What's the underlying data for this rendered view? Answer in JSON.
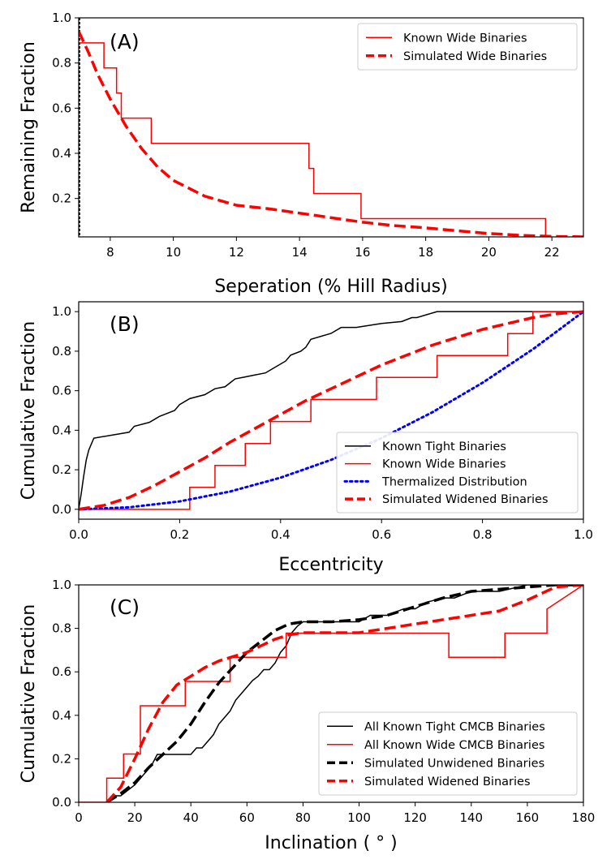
{
  "chart_data": [
    {
      "type": "line",
      "panel_label": "(A)",
      "xlabel": "Seperation (% Hill Radius)",
      "ylabel": "Remaining Fraction",
      "xlim": [
        7,
        23
      ],
      "ylim": [
        0.03,
        1.0
      ],
      "xticks": [
        8,
        10,
        12,
        14,
        16,
        18,
        20,
        22
      ],
      "yticks": [
        0.2,
        0.4,
        0.6,
        0.8,
        1.0
      ],
      "xtick_labels": [
        "8",
        "10",
        "12",
        "14",
        "16",
        "18",
        "20",
        "22"
      ],
      "ytick_labels": [
        "0.2",
        "0.4",
        "0.6",
        "0.8",
        "1.0"
      ],
      "legend_position": "top-right",
      "series": [
        {
          "name": "Known Wide Binaries",
          "color": "#ff0000",
          "style": "solid",
          "x": [
            7.0,
            7.8,
            7.8,
            8.2,
            8.2,
            8.35,
            8.35,
            9.3,
            9.3,
            14.3,
            14.3,
            14.45,
            14.45,
            15.95,
            15.95,
            21.8,
            21.8
          ],
          "y": [
            0.889,
            0.889,
            0.778,
            0.778,
            0.667,
            0.667,
            0.556,
            0.556,
            0.444,
            0.444,
            0.333,
            0.333,
            0.222,
            0.222,
            0.111,
            0.111,
            0.03
          ]
        },
        {
          "name": "Simulated Wide Binaries",
          "color": "#ff0000",
          "style": "dashed",
          "x": [
            7.0,
            7.3,
            7.6,
            8.0,
            8.5,
            9.0,
            9.5,
            10.0,
            11.0,
            12.0,
            13.0,
            14.0,
            15.0,
            16.0,
            17.0,
            18.0,
            19.0,
            20.0,
            21.0,
            22.0,
            23.0
          ],
          "y": [
            0.94,
            0.85,
            0.75,
            0.64,
            0.52,
            0.42,
            0.34,
            0.28,
            0.21,
            0.17,
            0.155,
            0.135,
            0.115,
            0.095,
            0.08,
            0.07,
            0.057,
            0.045,
            0.037,
            0.032,
            0.03
          ]
        }
      ]
    },
    {
      "type": "line",
      "panel_label": "(B)",
      "xlabel": "Eccentricity",
      "ylabel": "Cumulative Fraction",
      "xlim": [
        0,
        1
      ],
      "ylim": [
        -0.05,
        1.05
      ],
      "xticks": [
        0.0,
        0.2,
        0.4,
        0.6,
        0.8,
        1.0
      ],
      "yticks": [
        0.0,
        0.2,
        0.4,
        0.6,
        0.8,
        1.0
      ],
      "xtick_labels": [
        "0.0",
        "0.2",
        "0.4",
        "0.6",
        "0.8",
        "1.0"
      ],
      "ytick_labels": [
        "0.0",
        "0.2",
        "0.4",
        "0.6",
        "0.8",
        "1.0"
      ],
      "legend_position": "bottom-right",
      "series": [
        {
          "name": "Known Tight Binaries",
          "color": "#000000",
          "style": "solid",
          "x": [
            0.0,
            0.005,
            0.01,
            0.015,
            0.02,
            0.025,
            0.03,
            0.1,
            0.11,
            0.14,
            0.16,
            0.19,
            0.2,
            0.22,
            0.25,
            0.27,
            0.29,
            0.3,
            0.31,
            0.33,
            0.35,
            0.37,
            0.39,
            0.41,
            0.42,
            0.44,
            0.45,
            0.46,
            0.5,
            0.52,
            0.55,
            0.6,
            0.64,
            0.66,
            0.67,
            0.71,
            0.8,
            1.0
          ],
          "y": [
            0.0,
            0.08,
            0.17,
            0.25,
            0.3,
            0.33,
            0.36,
            0.39,
            0.42,
            0.44,
            0.47,
            0.5,
            0.53,
            0.56,
            0.58,
            0.61,
            0.62,
            0.64,
            0.66,
            0.67,
            0.68,
            0.69,
            0.72,
            0.75,
            0.78,
            0.8,
            0.82,
            0.86,
            0.89,
            0.92,
            0.92,
            0.94,
            0.95,
            0.97,
            0.97,
            1.0,
            1.0,
            1.0
          ]
        },
        {
          "name": "Known Wide Binaries",
          "color": "#ff0000",
          "style": "solid",
          "x": [
            0.0,
            0.22,
            0.22,
            0.27,
            0.27,
            0.33,
            0.33,
            0.38,
            0.38,
            0.46,
            0.46,
            0.59,
            0.59,
            0.71,
            0.71,
            0.85,
            0.85,
            0.9,
            0.9,
            1.0
          ],
          "y": [
            0.0,
            0.0,
            0.111,
            0.111,
            0.222,
            0.222,
            0.333,
            0.333,
            0.444,
            0.444,
            0.556,
            0.556,
            0.667,
            0.667,
            0.778,
            0.778,
            0.889,
            0.889,
            1.0,
            1.0
          ]
        },
        {
          "name": "Thermalized Distribution",
          "color": "#0000ff",
          "style": "dotted",
          "x": [
            0.0,
            0.1,
            0.2,
            0.3,
            0.4,
            0.5,
            0.6,
            0.7,
            0.8,
            0.9,
            1.0
          ],
          "y": [
            0.0,
            0.01,
            0.04,
            0.09,
            0.16,
            0.25,
            0.36,
            0.49,
            0.64,
            0.81,
            1.0
          ]
        },
        {
          "name": "Simulated Widened Binaries",
          "color": "#ff0000",
          "style": "dashed",
          "x": [
            0.0,
            0.05,
            0.1,
            0.15,
            0.2,
            0.25,
            0.3,
            0.35,
            0.4,
            0.45,
            0.5,
            0.55,
            0.6,
            0.65,
            0.7,
            0.75,
            0.8,
            0.85,
            0.9,
            0.95,
            1.0
          ],
          "y": [
            0.0,
            0.02,
            0.06,
            0.12,
            0.19,
            0.26,
            0.34,
            0.41,
            0.48,
            0.55,
            0.61,
            0.67,
            0.73,
            0.78,
            0.83,
            0.87,
            0.91,
            0.94,
            0.97,
            0.99,
            1.0
          ]
        }
      ]
    },
    {
      "type": "line",
      "panel_label": "(C)",
      "xlabel": "Inclination ( ° )",
      "ylabel": "Cumulative Fraction",
      "xlim": [
        0,
        180
      ],
      "ylim": [
        0.0,
        1.0
      ],
      "xticks": [
        0,
        20,
        40,
        60,
        80,
        100,
        120,
        140,
        160,
        180
      ],
      "yticks": [
        0.0,
        0.2,
        0.4,
        0.6,
        0.8,
        1.0
      ],
      "xtick_labels": [
        "0",
        "20",
        "40",
        "60",
        "80",
        "100",
        "120",
        "140",
        "160",
        "180"
      ],
      "ytick_labels": [
        "0.0",
        "0.2",
        "0.4",
        "0.6",
        "0.8",
        "1.0"
      ],
      "legend_position": "bottom-right",
      "series": [
        {
          "name": "All Known Tight CMCB Binaries",
          "color": "#000000",
          "style": "solid",
          "x": [
            10,
            12,
            15,
            18,
            20,
            22,
            24,
            26,
            28,
            40,
            42,
            44,
            46,
            48,
            50,
            52,
            54,
            56,
            58,
            60,
            62,
            64,
            66,
            68,
            70,
            72,
            74,
            76,
            78,
            80,
            100,
            104,
            110,
            116,
            120,
            124,
            130,
            134,
            140,
            150,
            160,
            166,
            180
          ],
          "y": [
            0.0,
            0.03,
            0.03,
            0.06,
            0.08,
            0.11,
            0.14,
            0.17,
            0.22,
            0.22,
            0.25,
            0.25,
            0.28,
            0.31,
            0.36,
            0.39,
            0.42,
            0.47,
            0.5,
            0.53,
            0.56,
            0.58,
            0.61,
            0.61,
            0.64,
            0.69,
            0.72,
            0.78,
            0.81,
            0.83,
            0.83,
            0.86,
            0.86,
            0.89,
            0.89,
            0.92,
            0.94,
            0.94,
            0.97,
            0.97,
            1.0,
            1.0,
            1.0
          ]
        },
        {
          "name": "All Known Wide CMCB Binaries",
          "color": "#ff0000",
          "style": "solid",
          "x": [
            0,
            10,
            10,
            16,
            16,
            22,
            22,
            38,
            38,
            54,
            54,
            74,
            74,
            132,
            132,
            152,
            152,
            167,
            167,
            180
          ],
          "y": [
            0.0,
            0.0,
            0.111,
            0.111,
            0.222,
            0.222,
            0.444,
            0.444,
            0.556,
            0.556,
            0.667,
            0.667,
            0.778,
            0.778,
            0.667,
            0.667,
            0.778,
            0.778,
            0.889,
            1.0
          ]
        },
        {
          "name": "Simulated Unwidened Binaries",
          "color": "#000000",
          "style": "dashed",
          "x": [
            10,
            15,
            20,
            25,
            30,
            35,
            40,
            45,
            50,
            55,
            60,
            65,
            70,
            75,
            80,
            90,
            100,
            110,
            120,
            130,
            140,
            150,
            160,
            170,
            180
          ],
          "y": [
            0.0,
            0.04,
            0.09,
            0.16,
            0.22,
            0.28,
            0.36,
            0.46,
            0.55,
            0.62,
            0.69,
            0.74,
            0.79,
            0.82,
            0.83,
            0.83,
            0.84,
            0.86,
            0.9,
            0.94,
            0.97,
            0.98,
            0.99,
            1.0,
            1.0
          ]
        },
        {
          "name": "Simulated Widened Binaries",
          "color": "#ff0000",
          "style": "dashed",
          "x": [
            10,
            15,
            20,
            25,
            30,
            35,
            40,
            45,
            50,
            55,
            60,
            65,
            70,
            75,
            80,
            90,
            100,
            105,
            110,
            120,
            130,
            140,
            150,
            160,
            170,
            180
          ],
          "y": [
            0.0,
            0.07,
            0.2,
            0.34,
            0.46,
            0.54,
            0.58,
            0.62,
            0.65,
            0.67,
            0.69,
            0.72,
            0.75,
            0.77,
            0.78,
            0.78,
            0.78,
            0.79,
            0.8,
            0.82,
            0.84,
            0.86,
            0.88,
            0.93,
            0.99,
            1.0
          ]
        }
      ]
    }
  ]
}
